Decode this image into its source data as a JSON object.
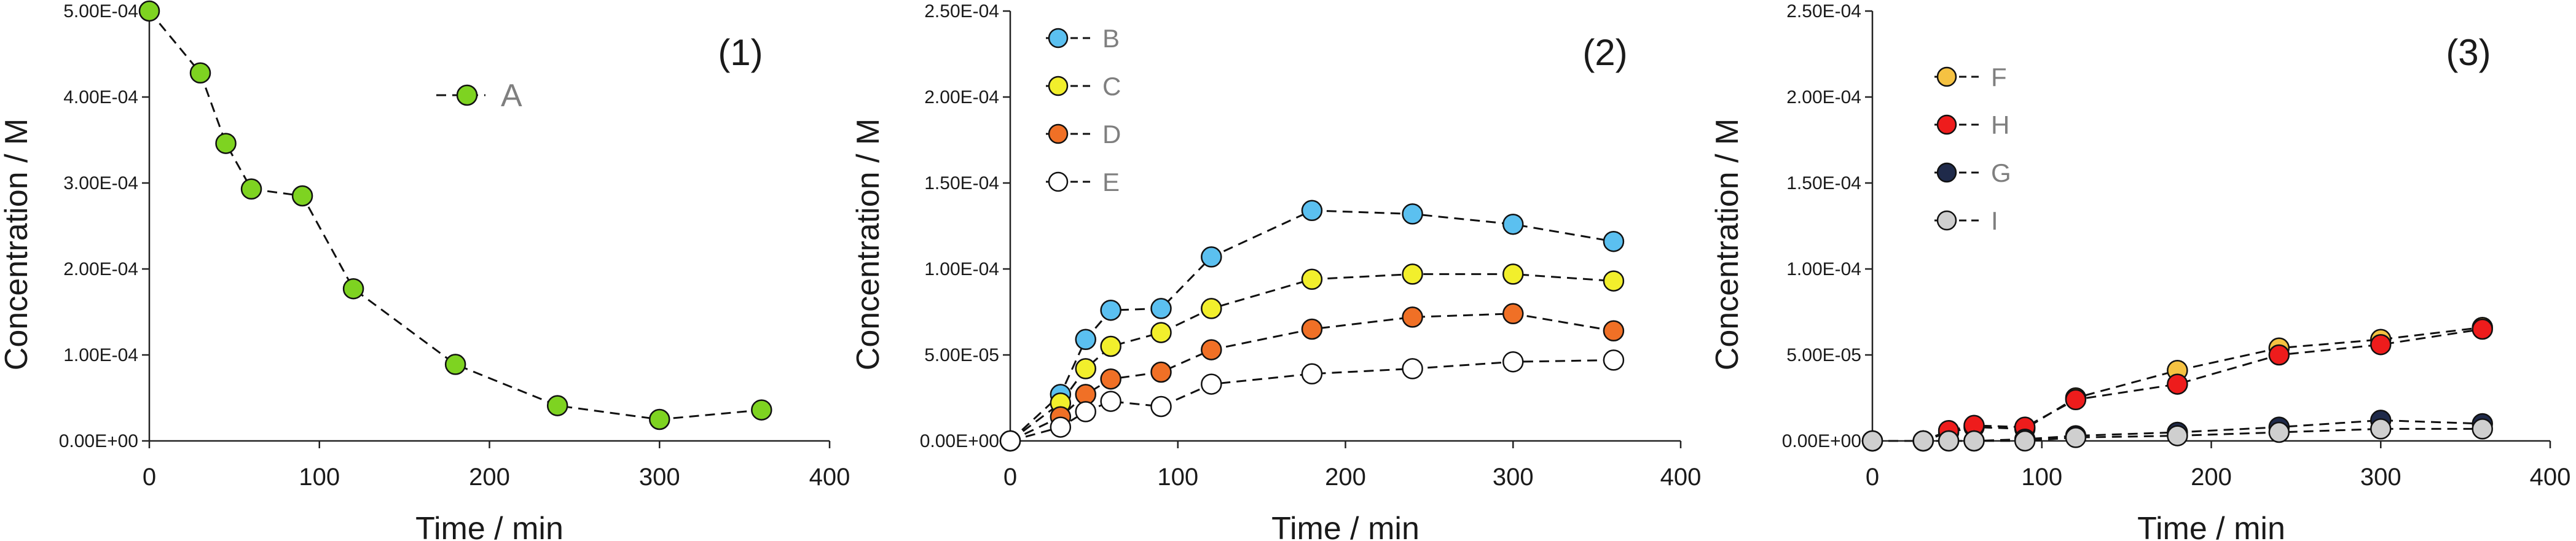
{
  "chart_data": [
    {
      "type": "line",
      "panel_label": "(1)",
      "xlabel": "Time / min",
      "ylabel": "Concentration / M",
      "xlim": [
        0,
        400
      ],
      "ylim": [
        0,
        0.0005
      ],
      "x_ticks": [
        "0",
        "100",
        "200",
        "300",
        "400"
      ],
      "y_ticks": [
        "0.00E+00",
        "1.00E-04",
        "2.00E-04",
        "3.00E-04",
        "4.00E-04",
        "5.00E-04"
      ],
      "legend_position": "top-center",
      "series": [
        {
          "name": "A",
          "color": "#7ed321",
          "x": [
            0,
            30,
            45,
            60,
            90,
            120,
            180,
            240,
            300,
            360
          ],
          "y": [
            0.0005,
            0.000428,
            0.000346,
            0.000293,
            0.000285,
            0.000177,
            8.9e-05,
            4.1e-05,
            2.5e-05,
            3.6e-05
          ]
        }
      ]
    },
    {
      "type": "line",
      "panel_label": "(2)",
      "xlabel": "Time / min",
      "ylabel": "Concentration / M",
      "xlim": [
        0,
        400
      ],
      "ylim": [
        0,
        0.00025
      ],
      "x_ticks": [
        "0",
        "100",
        "200",
        "300",
        "400"
      ],
      "y_ticks": [
        "0.00E+00",
        "5.00E-05",
        "1.00E-04",
        "1.50E-04",
        "2.00E-04",
        "2.50E-04"
      ],
      "legend_position": "top-left",
      "series": [
        {
          "name": "B",
          "color": "#5bc0f0",
          "x": [
            0,
            30,
            45,
            60,
            90,
            120,
            180,
            240,
            300,
            360
          ],
          "y": [
            0,
            2.7e-05,
            5.9e-05,
            7.6e-05,
            7.7e-05,
            0.000107,
            0.000134,
            0.000132,
            0.000126,
            0.000116
          ]
        },
        {
          "name": "C",
          "color": "#f2ef2c",
          "x": [
            0,
            30,
            45,
            60,
            90,
            120,
            180,
            240,
            300,
            360
          ],
          "y": [
            0,
            2.2e-05,
            4.2e-05,
            5.5e-05,
            6.3e-05,
            7.7e-05,
            9.4e-05,
            9.7e-05,
            9.7e-05,
            9.3e-05
          ]
        },
        {
          "name": "D",
          "color": "#f07026",
          "x": [
            0,
            30,
            45,
            60,
            90,
            120,
            180,
            240,
            300,
            360
          ],
          "y": [
            0,
            1.4e-05,
            2.7e-05,
            3.6e-05,
            4e-05,
            5.3e-05,
            6.5e-05,
            7.2e-05,
            7.4e-05,
            6.4e-05
          ]
        },
        {
          "name": "E",
          "color": "#ffffff",
          "x": [
            0,
            30,
            45,
            60,
            90,
            120,
            180,
            240,
            300,
            360
          ],
          "y": [
            0,
            8e-06,
            1.7e-05,
            2.3e-05,
            2e-05,
            3.3e-05,
            3.9e-05,
            4.2e-05,
            4.6e-05,
            4.7e-05
          ]
        }
      ]
    },
    {
      "type": "line",
      "panel_label": "(3)",
      "xlabel": "Time / min",
      "ylabel": "Concentration / M",
      "xlim": [
        0,
        400
      ],
      "ylim": [
        0,
        0.00025
      ],
      "x_ticks": [
        "0",
        "100",
        "200",
        "300",
        "400"
      ],
      "y_ticks": [
        "0.00E+00",
        "5.00E-05",
        "1.00E-04",
        "1.50E-04",
        "2.00E-04",
        "2.50E-04"
      ],
      "legend_position": "top-left",
      "series": [
        {
          "name": "F",
          "color": "#f5c242",
          "x": [
            0,
            30,
            45,
            60,
            90,
            120,
            180,
            240,
            300,
            360
          ],
          "y": [
            0,
            0,
            5e-06,
            8e-06,
            7e-06,
            2.5e-05,
            4.1e-05,
            5.4e-05,
            5.9e-05,
            6.6e-05
          ]
        },
        {
          "name": "H",
          "color": "#ee1c1c",
          "x": [
            0,
            30,
            45,
            60,
            90,
            120,
            180,
            240,
            300,
            360
          ],
          "y": [
            0,
            0,
            6e-06,
            9e-06,
            8e-06,
            2.4e-05,
            3.3e-05,
            5e-05,
            5.6e-05,
            6.5e-05
          ]
        },
        {
          "name": "G",
          "color": "#1f2a4a",
          "x": [
            0,
            30,
            45,
            60,
            90,
            120,
            180,
            240,
            300,
            360
          ],
          "y": [
            0,
            0,
            0,
            0,
            1e-06,
            3e-06,
            5e-06,
            8e-06,
            1.2e-05,
            1e-05
          ]
        },
        {
          "name": "I",
          "color": "#cfcfcf",
          "x": [
            0,
            30,
            45,
            60,
            90,
            120,
            180,
            240,
            300,
            360
          ],
          "y": [
            0,
            0,
            0,
            0,
            0,
            2e-06,
            3e-06,
            5e-06,
            7e-06,
            7e-06
          ]
        }
      ]
    }
  ]
}
